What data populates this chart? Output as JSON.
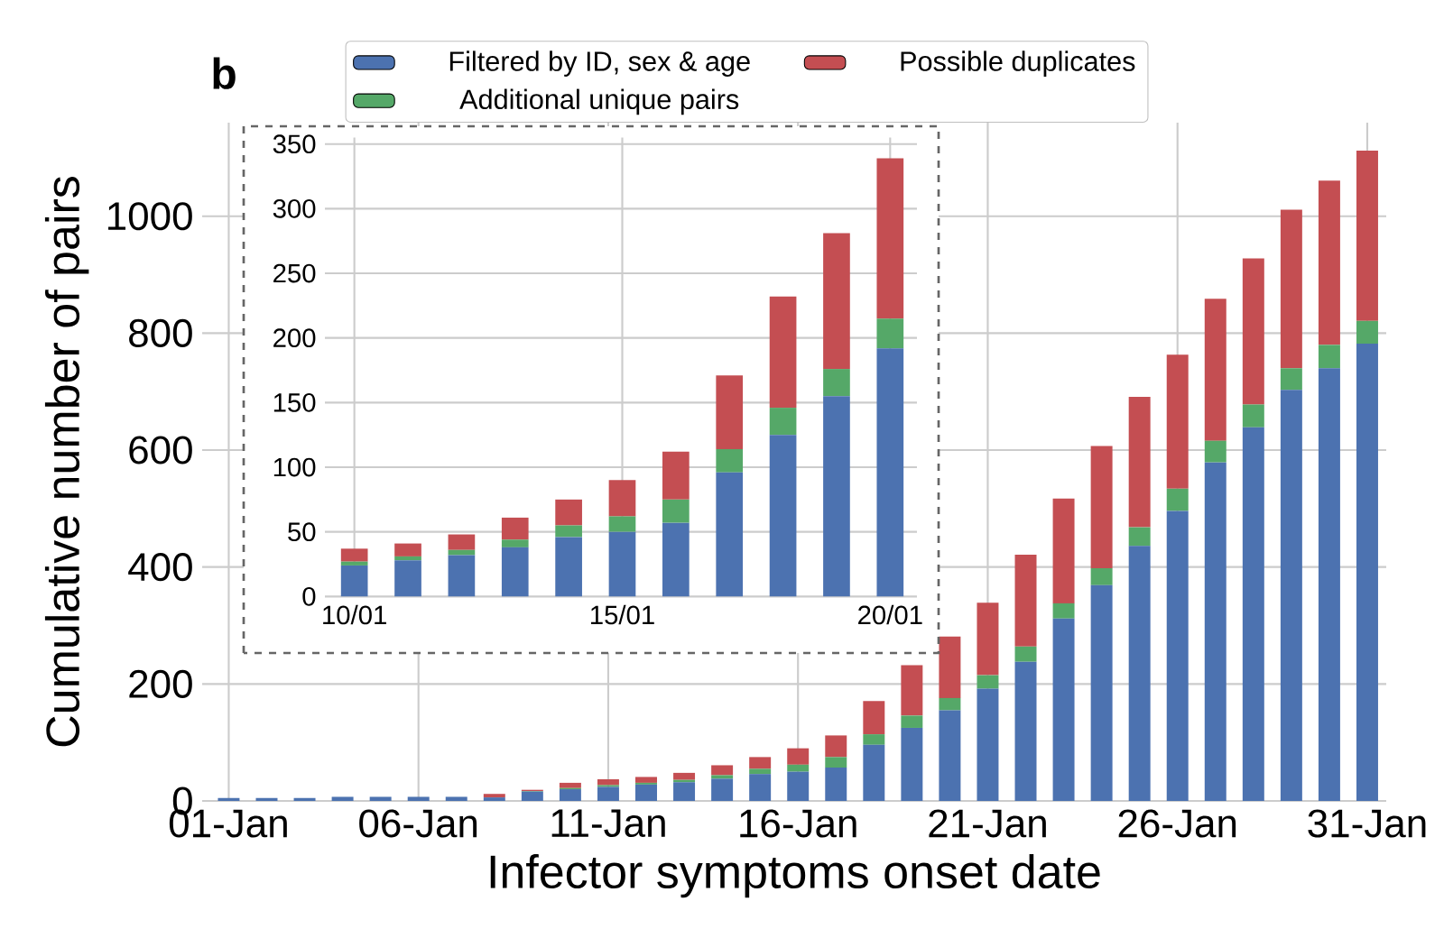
{
  "chart_data": [
    {
      "type": "bar",
      "stacked": true,
      "xlabel": "Infector symptoms onset date",
      "ylabel": "Cumulative number of pairs",
      "annotations": [
        "b"
      ],
      "categories": [
        "01-Jan",
        null,
        null,
        null,
        null,
        "06-Jan",
        null,
        null,
        null,
        null,
        "11-Jan",
        null,
        null,
        null,
        null,
        "16-Jan",
        null,
        null,
        null,
        null,
        "21-Jan",
        null,
        null,
        null,
        null,
        "26-Jan",
        null,
        null,
        null,
        null,
        "31-Jan"
      ],
      "series": [
        {
          "name": "Filtered by ID, sex & age",
          "color": "#4c72b0",
          "values": [
            5,
            5,
            5,
            7,
            7,
            7,
            7,
            6,
            16,
            20,
            24,
            28,
            32,
            38,
            46,
            50,
            57,
            96,
            125,
            155,
            192,
            238,
            312,
            369,
            436,
            496,
            579,
            639,
            703,
            740,
            782
          ]
        },
        {
          "name": "Additional unique pairs",
          "color": "#55a868",
          "values": [
            0,
            0,
            0,
            0,
            0,
            0,
            0,
            0,
            1,
            2,
            3,
            3,
            4,
            6,
            9,
            12,
            18,
            18,
            21,
            21,
            23,
            26,
            26,
            29,
            32,
            38,
            37,
            39,
            37,
            40,
            39
          ]
        },
        {
          "name": "Possible duplicates",
          "color": "#c44e52",
          "values": [
            0,
            0,
            0,
            0,
            0,
            0,
            0,
            6,
            2,
            9,
            10,
            10,
            12,
            17,
            20,
            28,
            37,
            57,
            86,
            105,
            124,
            157,
            179,
            209,
            223,
            229,
            243,
            250,
            271,
            281,
            291
          ]
        }
      ],
      "ylim": [
        0,
        1160
      ],
      "yticks": [
        0,
        200,
        400,
        600,
        800,
        1000
      ],
      "grid": true,
      "legend": "top"
    },
    {
      "type": "bar",
      "stacked": true,
      "categories": [
        "10/01",
        null,
        null,
        null,
        null,
        "15/01",
        null,
        null,
        null,
        null,
        "20/01"
      ],
      "series": [
        {
          "color": "#4c72b0",
          "values": [
            24,
            28,
            32,
            38,
            46,
            50,
            57,
            96,
            125,
            155,
            192
          ]
        },
        {
          "color": "#55a868",
          "values": [
            3,
            3,
            4,
            6,
            9,
            12,
            18,
            18,
            21,
            21,
            23
          ]
        },
        {
          "color": "#c44e52",
          "values": [
            10,
            10,
            12,
            17,
            20,
            28,
            37,
            57,
            86,
            105,
            124
          ]
        }
      ],
      "ylim": [
        0,
        355
      ],
      "yticks": [
        0,
        50,
        100,
        150,
        200,
        250,
        300,
        350
      ],
      "grid": true
    }
  ]
}
